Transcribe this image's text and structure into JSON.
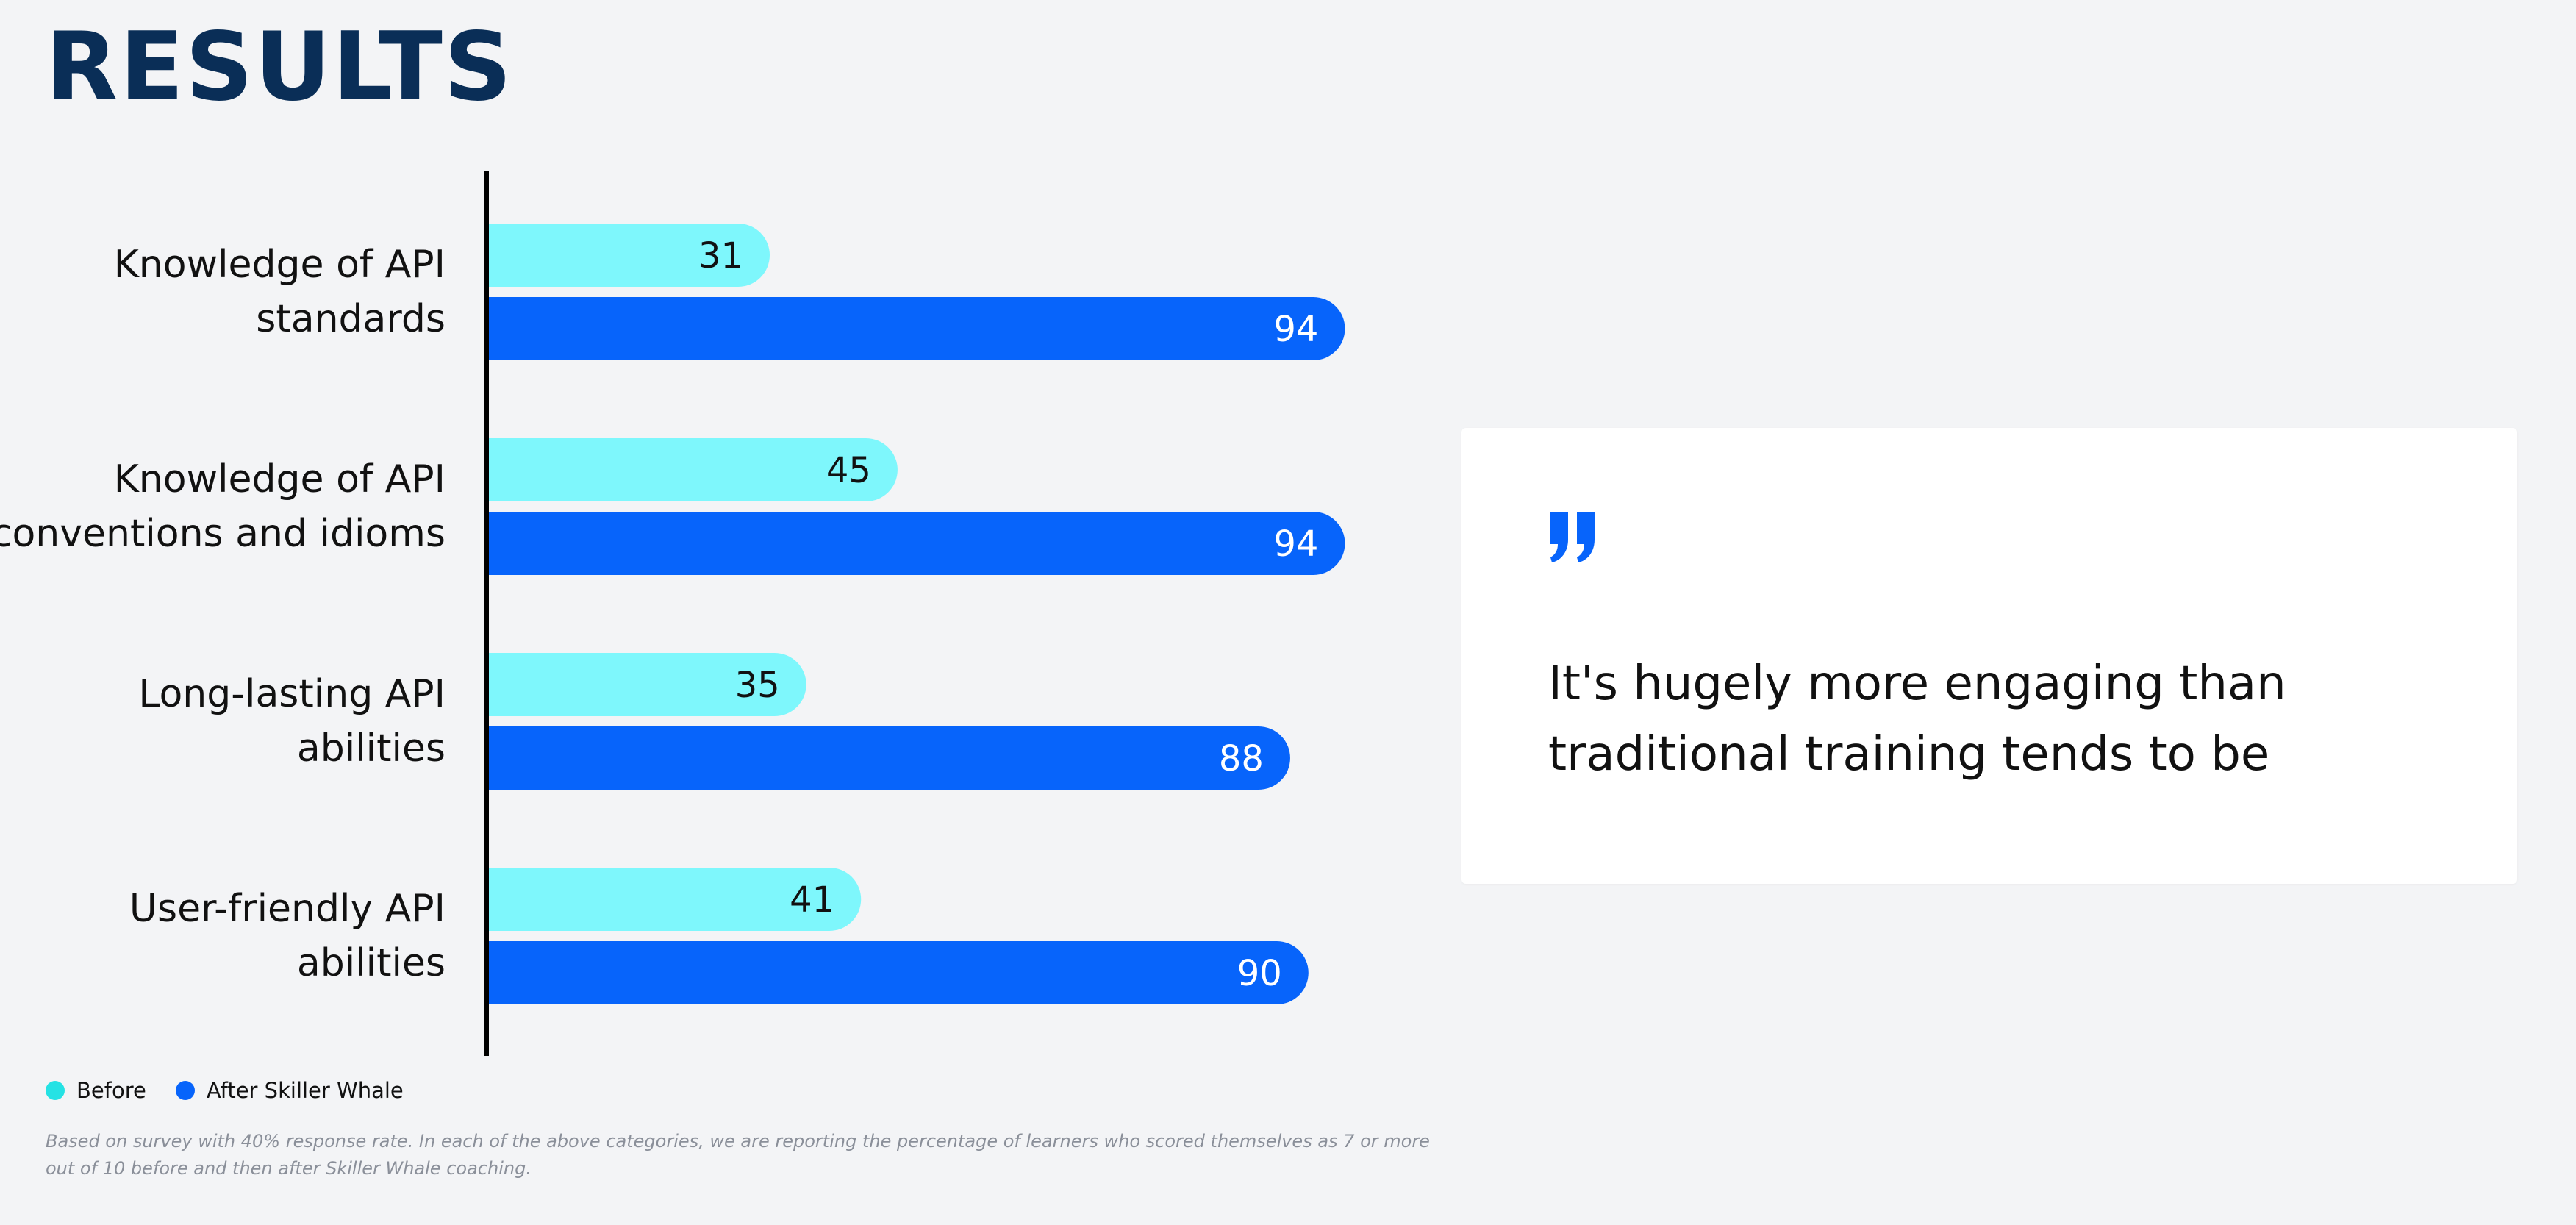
{
  "title": "RESULTS",
  "chart_data": {
    "type": "bar",
    "orientation": "horizontal",
    "categories": [
      [
        "Knowledge of API",
        "standards"
      ],
      [
        "Knowledge of API",
        "conventions and idioms"
      ],
      [
        "Long-lasting API",
        "abilities"
      ],
      [
        "User-friendly API",
        "abilities"
      ]
    ],
    "series": [
      {
        "name": "Before",
        "values": [
          31,
          45,
          35,
          41
        ],
        "color": "#7ef7fc",
        "label_color": "#111111"
      },
      {
        "name": "After Skiller Whale",
        "values": [
          94,
          94,
          88,
          90
        ],
        "color": "#0764fb",
        "label_color": "#ffffff"
      }
    ],
    "xlim": [
      0,
      100
    ],
    "grid": false,
    "legend_position": "bottom-left",
    "data_labels": true
  },
  "legend": {
    "items": [
      {
        "label": "Before",
        "color": "#25e2e4"
      },
      {
        "label": "After Skiller Whale",
        "color": "#0764fb"
      }
    ]
  },
  "footnote": "Based on survey with 40% response rate. In each of the above categories, we are reporting the percentage of learners who scored themselves as 7 or more out of 10 before and then after Skiller Whale coaching.",
  "quote": {
    "icon": "quote-icon",
    "icon_color": "#0764fb",
    "text": "It's hugely more engaging than traditional training tends to be"
  }
}
